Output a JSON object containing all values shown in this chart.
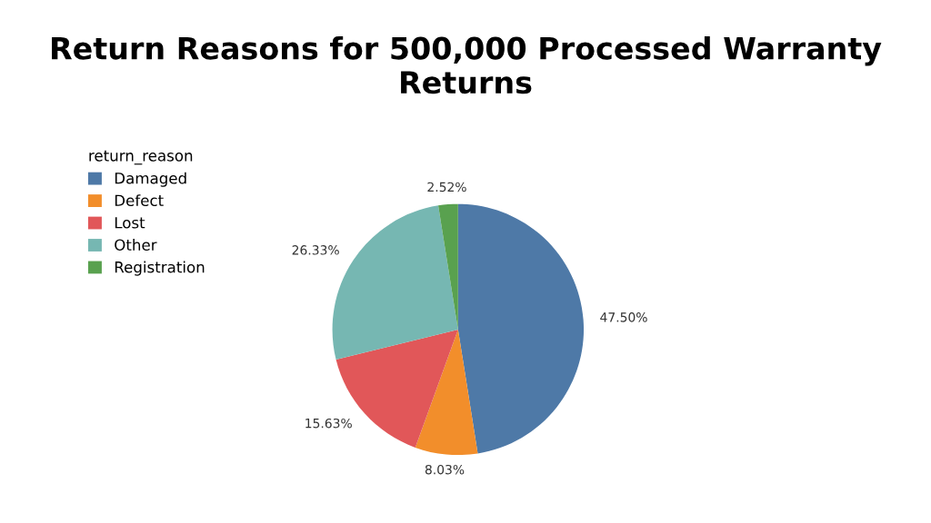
{
  "chart_data": {
    "type": "pie",
    "title": "Return Reasons for 500,000 Processed Warranty Returns",
    "legend_title": "return_reason",
    "categories": [
      "Damaged",
      "Defect",
      "Lost",
      "Other",
      "Registration"
    ],
    "values": [
      47.5,
      8.03,
      15.63,
      26.33,
      2.52
    ],
    "value_labels": [
      "47.50%",
      "8.03%",
      "15.63%",
      "26.33%",
      "2.52%"
    ],
    "colors": [
      "#4e79a7",
      "#f28e2b",
      "#e15759",
      "#76b7b2",
      "#59a14f"
    ],
    "legend": "top left"
  }
}
